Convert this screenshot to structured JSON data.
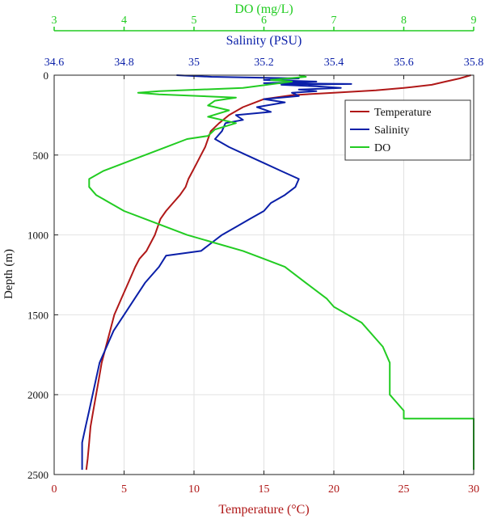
{
  "chart_data": {
    "type": "line",
    "ylabel": "Depth (m)",
    "y_reversed": true,
    "ylim": [
      0,
      2500
    ],
    "yticks": [
      0,
      500,
      1000,
      1500,
      2000,
      2500
    ],
    "grid": true,
    "legend_position": "top-right",
    "axes": {
      "temperature": {
        "label": "Temperature (°C)",
        "lim": [
          0,
          30
        ],
        "ticks": [
          0,
          5,
          10,
          15,
          20,
          25,
          30
        ],
        "position": "bottom",
        "color": "#b01818"
      },
      "salinity": {
        "label": "Salinity (PSU)",
        "lim": [
          34.6,
          35.8
        ],
        "ticks": [
          "34.6",
          "34.8",
          "35",
          "35.2",
          "35.4",
          "35.6",
          "35.8"
        ],
        "position": "top",
        "color": "#0a1fa8"
      },
      "do": {
        "label": "DO (mg/L)",
        "lim": [
          3,
          9
        ],
        "ticks": [
          3,
          4,
          5,
          6,
          7,
          8,
          9
        ],
        "position": "top",
        "color": "#22cc22"
      }
    },
    "series": [
      {
        "name": "Temperature",
        "axis": "temperature",
        "color": "#b01818",
        "points": [
          [
            29.8,
            0
          ],
          [
            29.0,
            20
          ],
          [
            28.0,
            40
          ],
          [
            27.0,
            60
          ],
          [
            25.0,
            80
          ],
          [
            23.0,
            95
          ],
          [
            20.0,
            110
          ],
          [
            17.0,
            125
          ],
          [
            15.0,
            150
          ],
          [
            13.5,
            200
          ],
          [
            12.5,
            250
          ],
          [
            11.8,
            300
          ],
          [
            11.2,
            350
          ],
          [
            11.0,
            400
          ],
          [
            10.8,
            450
          ],
          [
            10.5,
            500
          ],
          [
            10.2,
            550
          ],
          [
            9.9,
            600
          ],
          [
            9.6,
            650
          ],
          [
            9.4,
            700
          ],
          [
            9.0,
            750
          ],
          [
            8.5,
            800
          ],
          [
            8.0,
            850
          ],
          [
            7.6,
            900
          ],
          [
            7.2,
            1000
          ],
          [
            6.6,
            1100
          ],
          [
            6.1,
            1150
          ],
          [
            5.8,
            1200
          ],
          [
            5.3,
            1300
          ],
          [
            4.8,
            1400
          ],
          [
            4.3,
            1500
          ],
          [
            4.0,
            1600
          ],
          [
            3.7,
            1700
          ],
          [
            3.4,
            1800
          ],
          [
            3.2,
            1900
          ],
          [
            3.0,
            2000
          ],
          [
            2.8,
            2100
          ],
          [
            2.6,
            2200
          ],
          [
            2.5,
            2300
          ],
          [
            2.4,
            2400
          ],
          [
            2.3,
            2470
          ]
        ]
      },
      {
        "name": "Salinity",
        "axis": "salinity",
        "color": "#0a1fa8",
        "points": [
          [
            34.95,
            0
          ],
          [
            35.05,
            10
          ],
          [
            35.3,
            20
          ],
          [
            35.2,
            30
          ],
          [
            35.35,
            40
          ],
          [
            35.2,
            50
          ],
          [
            35.45,
            55
          ],
          [
            35.25,
            60
          ],
          [
            35.35,
            70
          ],
          [
            35.42,
            80
          ],
          [
            35.3,
            90
          ],
          [
            35.35,
            100
          ],
          [
            35.28,
            110
          ],
          [
            35.3,
            130
          ],
          [
            35.2,
            150
          ],
          [
            35.26,
            170
          ],
          [
            35.18,
            200
          ],
          [
            35.22,
            230
          ],
          [
            35.12,
            250
          ],
          [
            35.14,
            280
          ],
          [
            35.09,
            300
          ],
          [
            35.08,
            350
          ],
          [
            35.06,
            400
          ],
          [
            35.1,
            450
          ],
          [
            35.15,
            500
          ],
          [
            35.2,
            550
          ],
          [
            35.25,
            600
          ],
          [
            35.3,
            650
          ],
          [
            35.29,
            700
          ],
          [
            35.26,
            750
          ],
          [
            35.22,
            800
          ],
          [
            35.2,
            850
          ],
          [
            35.16,
            900
          ],
          [
            35.12,
            950
          ],
          [
            35.08,
            1000
          ],
          [
            35.05,
            1050
          ],
          [
            35.02,
            1100
          ],
          [
            34.92,
            1130
          ],
          [
            34.9,
            1200
          ],
          [
            34.86,
            1300
          ],
          [
            34.83,
            1400
          ],
          [
            34.8,
            1500
          ],
          [
            34.77,
            1600
          ],
          [
            34.75,
            1700
          ],
          [
            34.73,
            1800
          ],
          [
            34.72,
            1900
          ],
          [
            34.71,
            2000
          ],
          [
            34.7,
            2100
          ],
          [
            34.69,
            2200
          ],
          [
            34.68,
            2300
          ],
          [
            34.68,
            2400
          ],
          [
            34.68,
            2470
          ]
        ]
      },
      {
        "name": "DO",
        "axis": "do",
        "color": "#22cc22",
        "points": [
          [
            6.5,
            0
          ],
          [
            6.6,
            10
          ],
          [
            6.1,
            30
          ],
          [
            6.4,
            40
          ],
          [
            5.7,
            80
          ],
          [
            4.5,
            100
          ],
          [
            4.2,
            110
          ],
          [
            4.5,
            120
          ],
          [
            5.6,
            140
          ],
          [
            5.3,
            160
          ],
          [
            5.2,
            190
          ],
          [
            5.5,
            220
          ],
          [
            5.2,
            260
          ],
          [
            5.6,
            300
          ],
          [
            5.3,
            340
          ],
          [
            5.2,
            380
          ],
          [
            4.9,
            400
          ],
          [
            4.6,
            450
          ],
          [
            4.3,
            500
          ],
          [
            4.0,
            550
          ],
          [
            3.7,
            600
          ],
          [
            3.5,
            650
          ],
          [
            3.5,
            700
          ],
          [
            3.6,
            750
          ],
          [
            3.8,
            800
          ],
          [
            4.0,
            850
          ],
          [
            4.3,
            900
          ],
          [
            4.6,
            950
          ],
          [
            4.9,
            1000
          ],
          [
            5.3,
            1050
          ],
          [
            5.7,
            1100
          ],
          [
            6.0,
            1150
          ],
          [
            6.3,
            1200
          ],
          [
            6.6,
            1300
          ],
          [
            6.9,
            1400
          ],
          [
            7.0,
            1450
          ],
          [
            7.2,
            1500
          ],
          [
            7.4,
            1550
          ],
          [
            7.6,
            1650
          ],
          [
            7.7,
            1700
          ],
          [
            7.8,
            1800
          ],
          [
            7.8,
            1900
          ],
          [
            7.8,
            2000
          ],
          [
            7.9,
            2050
          ],
          [
            8.0,
            2100
          ],
          [
            8.0,
            2150
          ],
          [
            9.0,
            2150
          ],
          [
            9.0,
            2470
          ]
        ]
      }
    ]
  }
}
